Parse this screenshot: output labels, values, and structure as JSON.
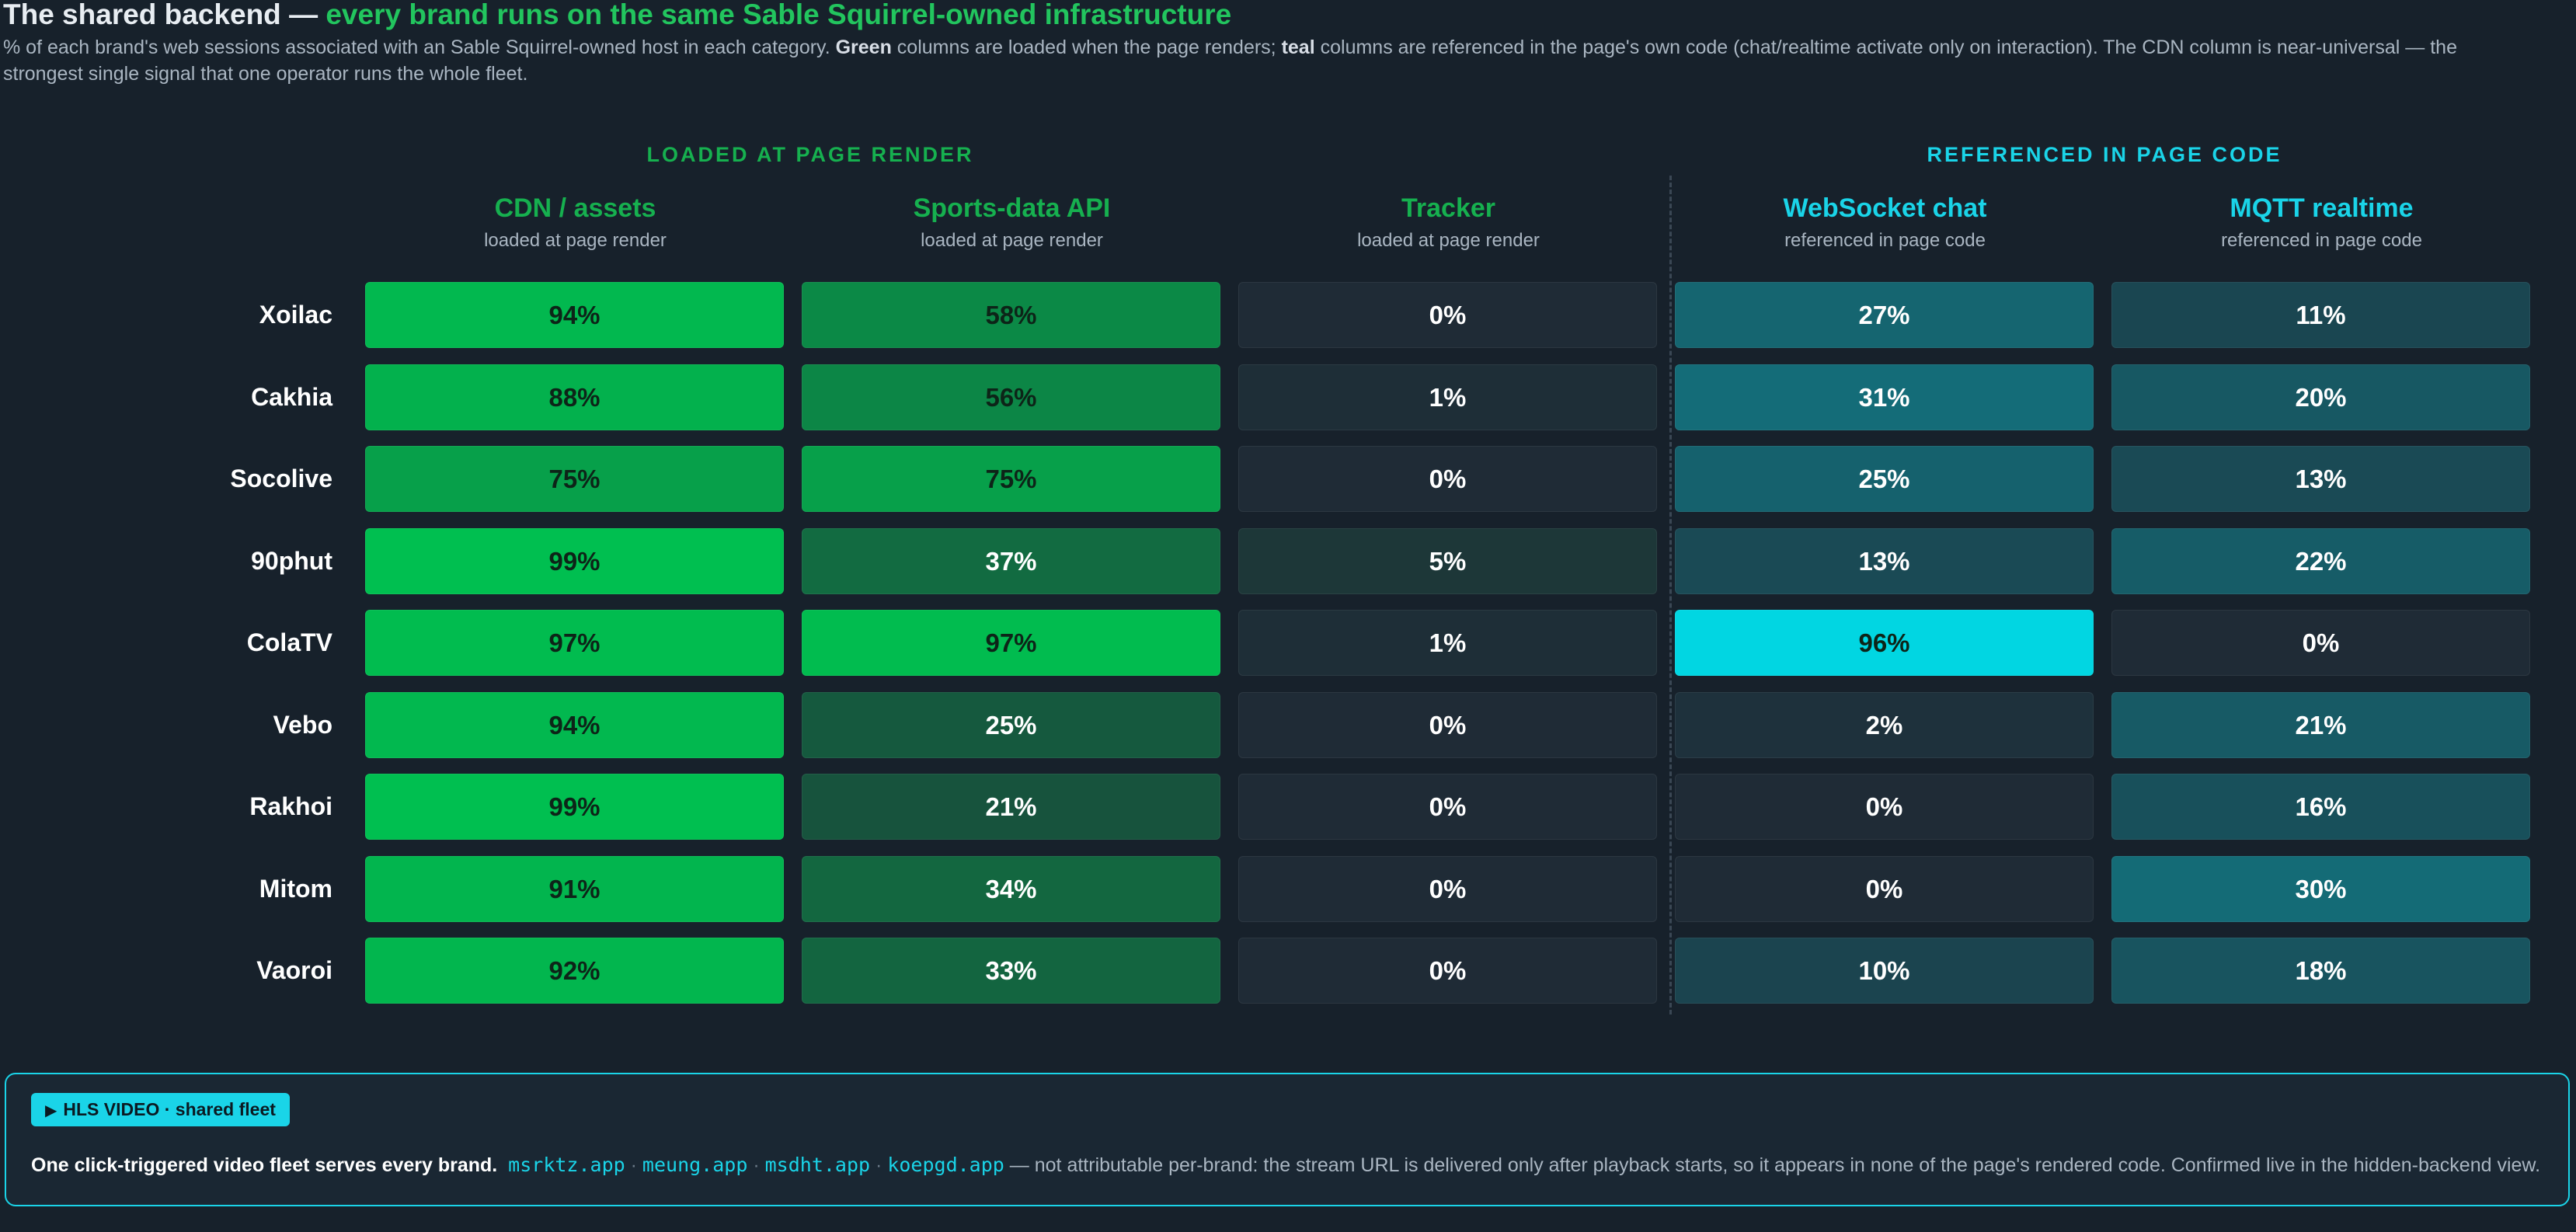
{
  "title": {
    "prefix": "The shared backend — ",
    "highlight": "every brand runs on the same Sable Squirrel-owned infrastructure"
  },
  "subtitle": {
    "part1": "% of each brand's web sessions associated with an Sable Squirrel-owned host in each category. ",
    "green_word": "Green",
    "part2": " columns are loaded when the page renders; ",
    "teal_word": "teal",
    "part3": " columns are referenced in the page's own code (chat/realtime activate only on interaction). The CDN column is near-universal — the strongest single signal that one operator runs the whole fleet."
  },
  "chart_data": {
    "type": "heatmap",
    "value_unit": "%",
    "groups": [
      {
        "label": "LOADED AT PAGE RENDER",
        "color": "#16b04f"
      },
      {
        "label": "REFERENCED IN PAGE CODE",
        "color": "#1ad4e8"
      }
    ],
    "columns": [
      {
        "name": "CDN / assets",
        "sublabel": "loaded at page render",
        "group": "green"
      },
      {
        "name": "Sports-data API",
        "sublabel": "loaded at page render",
        "group": "green"
      },
      {
        "name": "Tracker",
        "sublabel": "loaded at page render",
        "group": "green"
      },
      {
        "name": "WebSocket chat",
        "sublabel": "referenced in page code",
        "group": "teal"
      },
      {
        "name": "MQTT realtime",
        "sublabel": "referenced in page code",
        "group": "teal"
      }
    ],
    "rows": [
      "Xoilac",
      "Cakhia",
      "Socolive",
      "90phut",
      "ColaTV",
      "Vebo",
      "Rakhoi",
      "Mitom",
      "Vaoroi"
    ],
    "values": [
      [
        94,
        58,
        0,
        27,
        11
      ],
      [
        88,
        56,
        1,
        31,
        20
      ],
      [
        75,
        75,
        0,
        25,
        13
      ],
      [
        99,
        37,
        5,
        13,
        22
      ],
      [
        97,
        97,
        1,
        96,
        0
      ],
      [
        94,
        25,
        0,
        2,
        21
      ],
      [
        99,
        21,
        0,
        0,
        16
      ],
      [
        91,
        34,
        0,
        0,
        30
      ],
      [
        92,
        33,
        0,
        10,
        18
      ]
    ],
    "colors": {
      "green_high": "#00c050",
      "teal_high": "#00dce8",
      "cell_empty": "#1f2b36",
      "text_dark": "#0d2418",
      "text_light": "#ffffff"
    }
  },
  "callout": {
    "badge": "HLS VIDEO · shared fleet",
    "lead": "One click-triggered video fleet serves every brand.",
    "domains": [
      "msrktz.app",
      "meung.app",
      "msdht.app",
      "koepgd.app"
    ],
    "separator": "·",
    "tail": "— not attributable per-brand: the stream URL is delivered only after playback starts, so it appears in none of the page's rendered code. Confirmed live in the hidden-backend view."
  }
}
